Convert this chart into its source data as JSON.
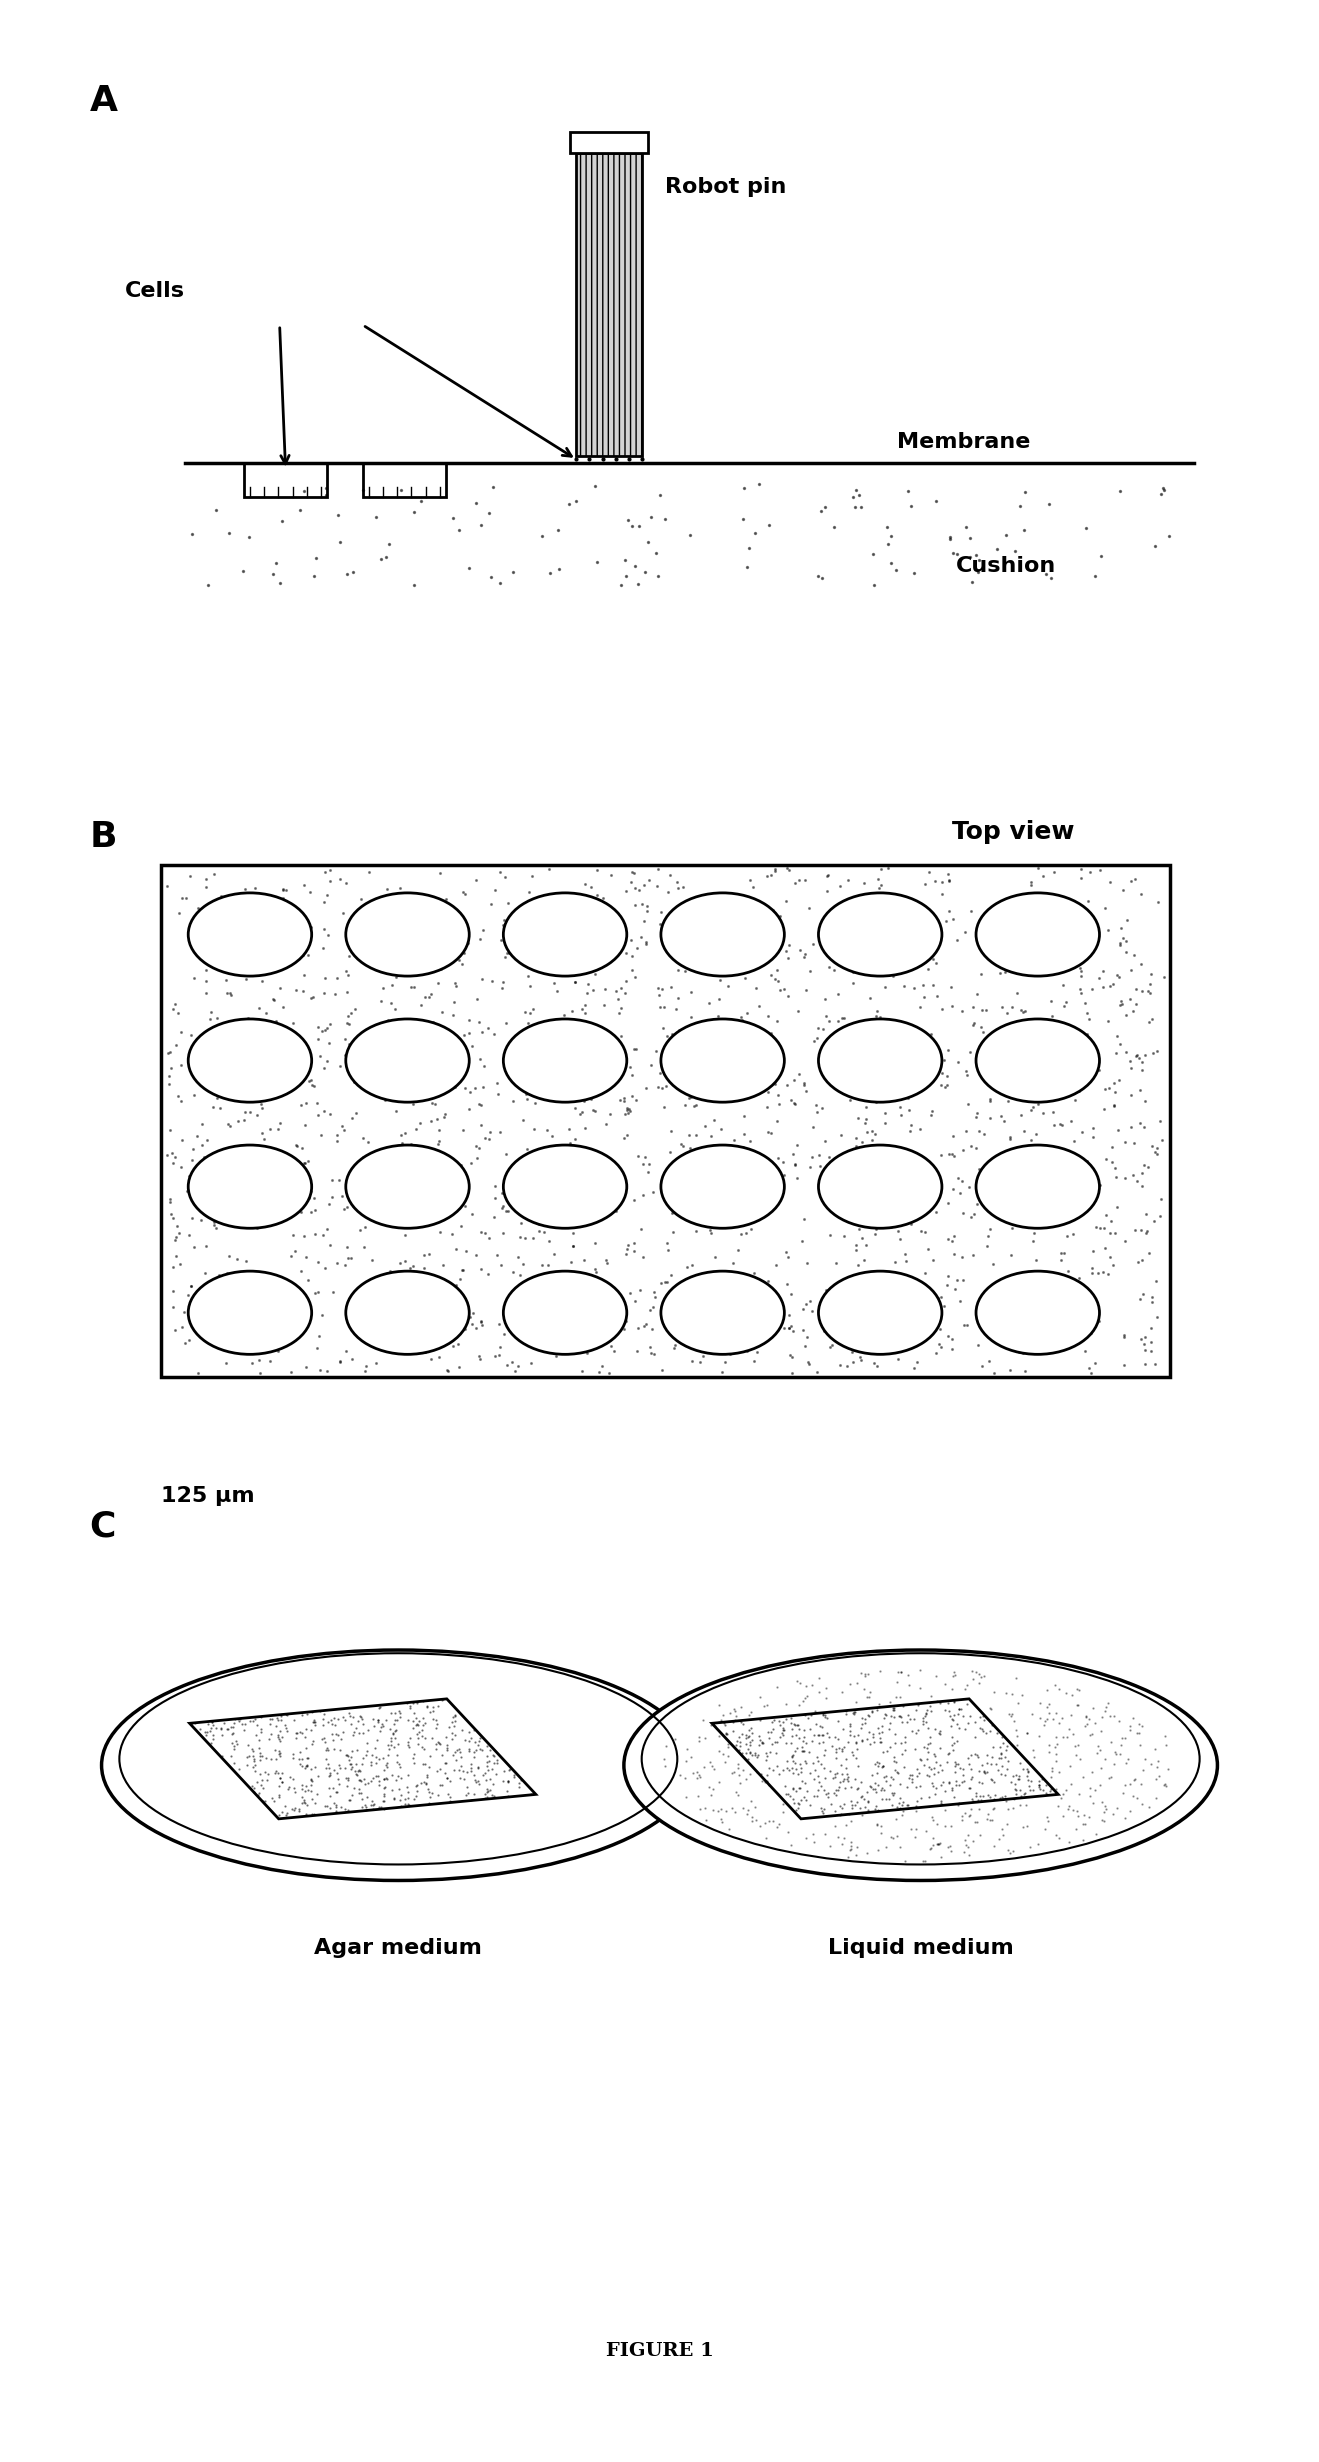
{
  "fig_width": 13.19,
  "fig_height": 24.62,
  "bg_color": "#ffffff",
  "panel_A": {
    "label": "A",
    "robot_pin_label": "Robot pin",
    "membrane_label": "Membrane",
    "cushion_label": "Cushion",
    "cells_label": "Cells"
  },
  "panel_B": {
    "label": "B",
    "top_view_label": "Top view",
    "scale_label": "125 μm",
    "grid_cols": 6,
    "grid_rows": 4
  },
  "panel_C": {
    "label": "C",
    "agar_label": "Agar medium",
    "liquid_label": "Liquid medium"
  },
  "figure_label": "FIGURE 1"
}
